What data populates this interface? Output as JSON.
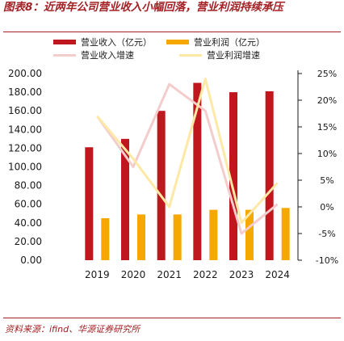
{
  "header": {
    "title": "图表8：近两年公司营业收入小幅回落，营业利润持续承压",
    "source": "资料来源：ifind、华源证券研究所"
  },
  "legend": [
    {
      "label": "营业收入（亿元）",
      "kind": "bar",
      "color": "#c0161d"
    },
    {
      "label": "营业利润（亿元）",
      "kind": "bar",
      "color": "#f5a800"
    },
    {
      "label": "营业收入增速",
      "kind": "line",
      "color": "#f3cccc"
    },
    {
      "label": "营业利润增速",
      "kind": "line",
      "color": "#fde9a5"
    }
  ],
  "chart_data": {
    "type": "bar",
    "categories": [
      "2019",
      "2020",
      "2021",
      "2022",
      "2023",
      "2024"
    ],
    "series": [
      {
        "name": "营业收入（亿元）",
        "kind": "bar",
        "axis": "left",
        "color": "#c0161d",
        "values": [
          121,
          130,
          160,
          190,
          180,
          181
        ]
      },
      {
        "name": "营业利润（亿元）",
        "kind": "bar",
        "axis": "left",
        "color": "#f5a800",
        "values": [
          45,
          49,
          49,
          54,
          54,
          56
        ]
      },
      {
        "name": "营业收入增速",
        "kind": "line",
        "axis": "right",
        "color": "#f3cccc",
        "values": [
          17.0,
          7.5,
          23.0,
          18.0,
          -5.0,
          0.5
        ]
      },
      {
        "name": "营业利润增速",
        "kind": "line",
        "axis": "right",
        "color": "#fde9a5",
        "values": [
          17.0,
          9.0,
          0.0,
          24.0,
          -3.0,
          4.5
        ]
      }
    ],
    "y_left": {
      "ylim": [
        0,
        200
      ],
      "ticks": [
        "200.00",
        "180.00",
        "160.00",
        "140.00",
        "120.00",
        "100.00",
        "80.00",
        "60.00",
        "40.00",
        "20.00",
        "0.00"
      ]
    },
    "y_right": {
      "ylim": [
        -10,
        25
      ],
      "ticks": [
        "25%",
        "20%",
        "15%",
        "10%",
        "5%",
        "0%",
        "-5%",
        "-10%"
      ]
    },
    "grid": false,
    "legend_position": "top"
  }
}
